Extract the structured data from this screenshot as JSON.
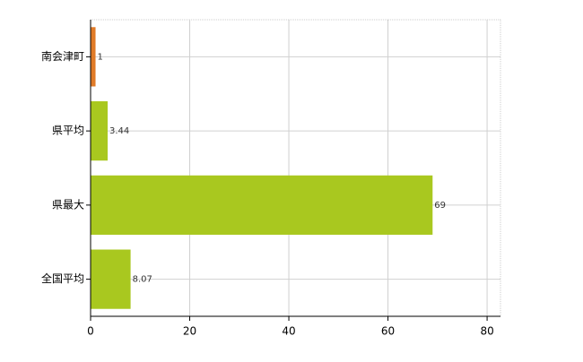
{
  "chart_data": {
    "type": "hbar",
    "categories": [
      "南会津町",
      "県平均",
      "県最大",
      "全国平均"
    ],
    "values": [
      1,
      3.44,
      69,
      8.07
    ],
    "colors": [
      "#e07b28",
      "#a9c81f",
      "#a9c81f",
      "#a9c81f"
    ],
    "xlim": [
      0,
      82.7
    ],
    "xticks": [
      0,
      20,
      40,
      60,
      80
    ],
    "grid": true
  }
}
